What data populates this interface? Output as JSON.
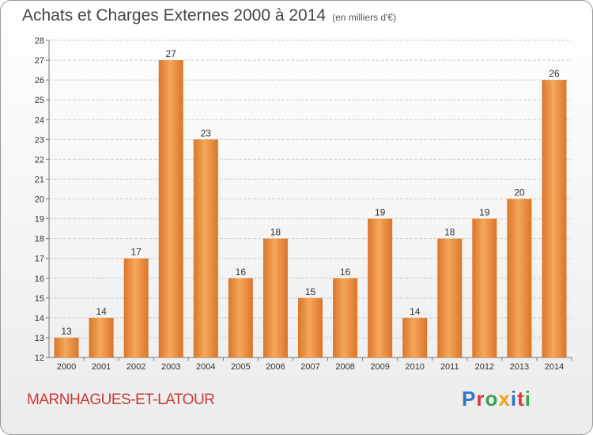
{
  "header": {
    "title": "Achats et Charges Externes 2000 à 2014",
    "subtitle": "(en milliers d'€)"
  },
  "footer": {
    "commune": "MARNHAGUES-ET-LATOUR",
    "logo_letters": [
      "P",
      "r",
      "o",
      "x",
      "i",
      "t",
      "i"
    ],
    "logo_colors": [
      "#2f76c9",
      "#e2363c",
      "#3aa24a",
      "#f0a21a",
      "#2f76c9",
      "#e2363c",
      "#3aa24a"
    ]
  },
  "colors": {
    "bar_light": "#f6a75a",
    "bar_dark": "#d9762a",
    "grid": "#cfcfcf",
    "axis": "#777777",
    "text": "#333333"
  },
  "chart_data": {
    "type": "bar",
    "title": "Achats et Charges Externes 2000 à 2014",
    "subtitle": "(en milliers d'€)",
    "categories": [
      "2000",
      "2001",
      "2002",
      "2003",
      "2004",
      "2005",
      "2006",
      "2007",
      "2008",
      "2009",
      "2010",
      "2011",
      "2012",
      "2013",
      "2014"
    ],
    "values": [
      13,
      14,
      17,
      27,
      23,
      16,
      18,
      15,
      16,
      19,
      14,
      18,
      19,
      20,
      26
    ],
    "ylim": [
      12,
      28
    ],
    "yticks": [
      12,
      13,
      14,
      15,
      16,
      17,
      18,
      19,
      20,
      21,
      22,
      23,
      24,
      25,
      26,
      27,
      28
    ],
    "grid": true,
    "data_labels": true
  }
}
